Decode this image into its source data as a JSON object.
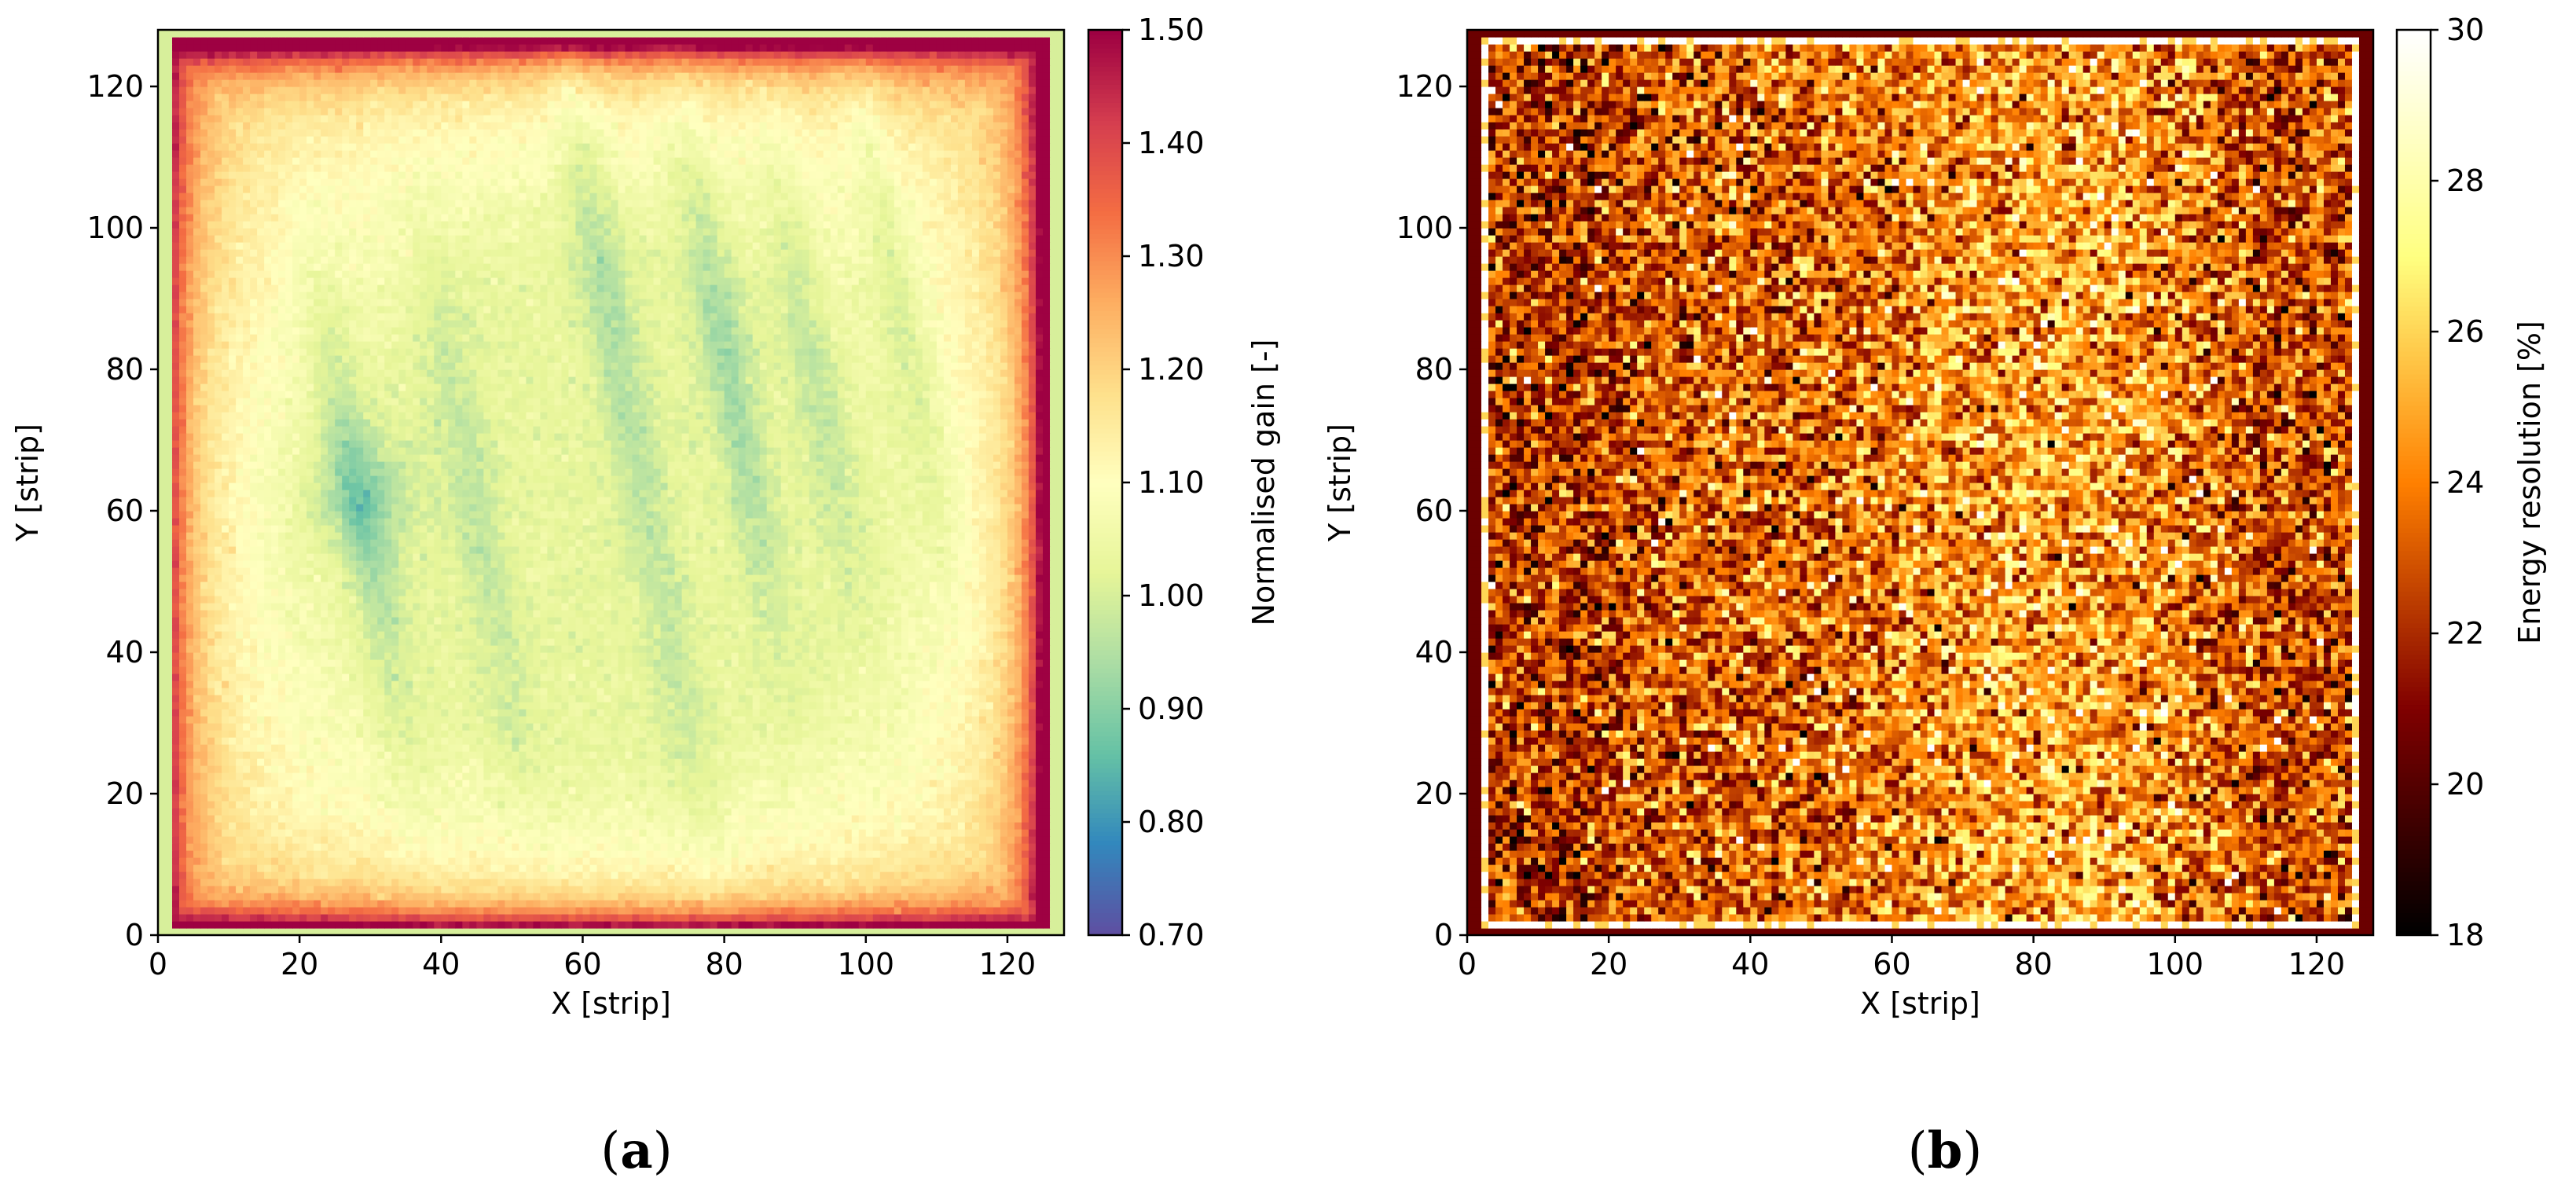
{
  "figure": {
    "charts": [
      {
        "id": "a",
        "panel_label": "a",
        "colorbar_label": "Normalised gain [-]",
        "colorbar_ticks": [
          "1.50",
          "1.40",
          "1.30",
          "1.20",
          "1.10",
          "1.00",
          "0.90",
          "0.80",
          "0.70"
        ],
        "colormap": "Spectral_r"
      },
      {
        "id": "b",
        "panel_label": "b",
        "colorbar_label": "Energy resolution [%]",
        "colorbar_ticks": [
          "30",
          "28",
          "26",
          "24",
          "22",
          "20",
          "18"
        ],
        "colormap": "afmhot"
      }
    ]
  },
  "chart_data": [
    {
      "type": "heatmap",
      "title": "",
      "xlabel": "X [strip]",
      "ylabel": "Y [strip]",
      "xlim": [
        0,
        128
      ],
      "ylim": [
        0,
        128
      ],
      "x_ticks": [
        0,
        20,
        40,
        60,
        80,
        100,
        120
      ],
      "y_ticks": [
        0,
        20,
        40,
        60,
        80,
        100,
        120
      ],
      "grid": false,
      "n_strips_x": 128,
      "n_strips_y": 128,
      "colorbar": {
        "label": "Normalised gain [-]",
        "range": [
          0.7,
          1.5
        ],
        "ticks": [
          0.7,
          0.8,
          0.9,
          1.0,
          1.1,
          1.2,
          1.3,
          1.4,
          1.5
        ]
      },
      "value_description": "Gain map: ~0.82-0.95 in interior with diagonal low-gain streaks; ~1.05-1.1 near edges; ~1.2-1.35 at outer border; corners elevated",
      "typical_interior_value": 0.9,
      "typical_edge_value": 1.15
    },
    {
      "type": "heatmap",
      "title": "",
      "xlabel": "X [strip]",
      "ylabel": "Y [strip]",
      "xlim": [
        0,
        128
      ],
      "ylim": [
        0,
        128
      ],
      "x_ticks": [
        0,
        20,
        40,
        60,
        80,
        100,
        120
      ],
      "y_ticks": [
        0,
        20,
        40,
        60,
        80,
        100,
        120
      ],
      "grid": false,
      "n_strips_x": 128,
      "n_strips_y": 128,
      "colorbar": {
        "label": "Energy resolution [%]",
        "range": [
          18,
          30
        ],
        "ticks": [
          18,
          20,
          22,
          24,
          26,
          28,
          30
        ]
      },
      "value_description": "Energy resolution map: noisy, ~20-27 % across the active area, slightly higher (~25-26 %) in centre-right band, lower (~21-22 %) at left and right; dark red border frame",
      "typical_value": 23.5,
      "noise_sigma": 2.0
    }
  ]
}
